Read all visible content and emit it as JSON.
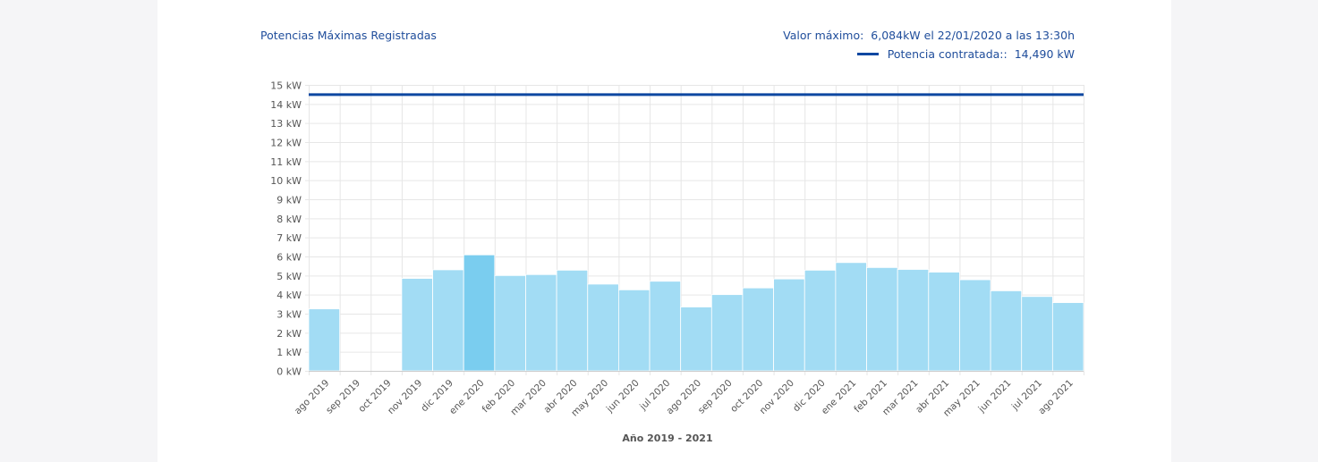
{
  "header": {
    "title": "Potencias Máximas Registradas",
    "max_label": "Valor máximo:",
    "max_value": "6,084kW el 22/01/2020 a las 13:30h",
    "contracted_label": "Potencia contratada::",
    "contracted_value": "14,490 kW"
  },
  "colors": {
    "bar": "#a2dcf4",
    "bar_highlight": "#7acdef",
    "contracted_line": "#0d47a1",
    "header_text": "#1f4d9b"
  },
  "chart_data": {
    "type": "bar",
    "title": "Potencias Máximas Registradas",
    "xlabel": "Año  2019 - 2021",
    "ylabel": "",
    "y_unit": "kW",
    "ylim": [
      0,
      15
    ],
    "yticks": [
      0,
      1,
      2,
      3,
      4,
      5,
      6,
      7,
      8,
      9,
      10,
      11,
      12,
      13,
      14,
      15
    ],
    "grid": true,
    "categories": [
      "ago 2019",
      "sep 2019",
      "oct 2019",
      "nov 2019",
      "dic 2019",
      "ene 2020",
      "feb 2020",
      "mar 2020",
      "abr 2020",
      "may 2020",
      "jun 2020",
      "jul 2020",
      "ago 2020",
      "sep 2020",
      "oct 2020",
      "nov 2020",
      "dic 2020",
      "ene 2021",
      "feb 2021",
      "mar 2021",
      "abr 2021",
      "may 2021",
      "jun 2021",
      "jul 2021",
      "ago 2021"
    ],
    "values": [
      3.25,
      0,
      0,
      4.85,
      5.3,
      6.084,
      5.0,
      5.05,
      5.28,
      4.55,
      4.25,
      4.7,
      3.35,
      4.0,
      4.35,
      4.82,
      5.28,
      5.68,
      5.42,
      5.32,
      5.18,
      4.78,
      4.2,
      3.9,
      3.58
    ],
    "highlight_index": 5,
    "reference_line": {
      "name": "Potencia contratada:",
      "value": 14.49
    }
  }
}
